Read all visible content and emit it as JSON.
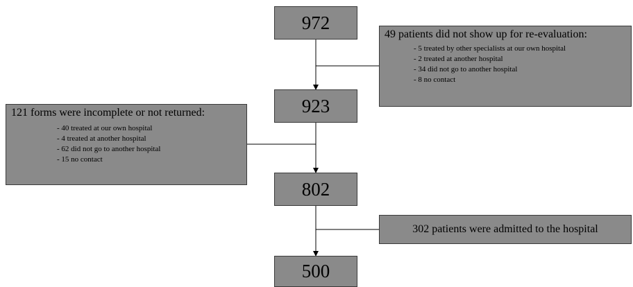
{
  "flow": {
    "counts": [
      "972",
      "923",
      "802",
      "500"
    ]
  },
  "notes": {
    "no_show": {
      "title": "49 patients did not show up for re-evaluation:",
      "items": [
        "- 5 treated by other specialists at our own hospital",
        "- 2 treated at another hospital",
        "- 34 did not go to another hospital",
        "- 8 no contact"
      ]
    },
    "incomplete": {
      "title": "121 forms were incomplete or not returned:",
      "items": [
        "- 40 treated at our own hospital",
        "- 4 treated at another hospital",
        "- 62 did not go to another hospital",
        "- 15 no contact"
      ]
    },
    "admitted": {
      "title": "302 patients were admitted to the hospital"
    }
  },
  "colors": {
    "box_fill": "#8a8a8a",
    "line": "#000000"
  }
}
